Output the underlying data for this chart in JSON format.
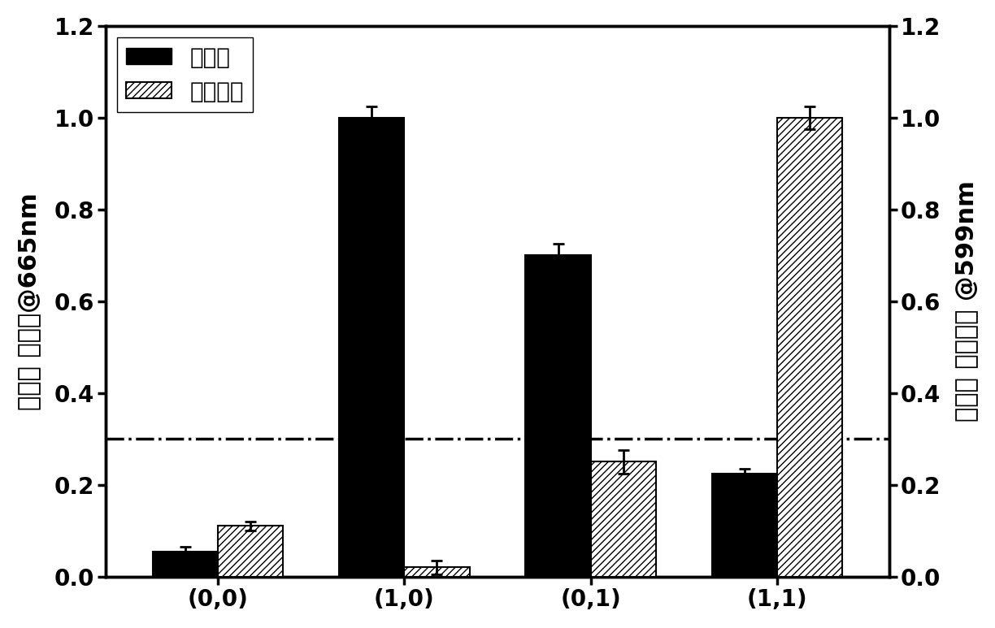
{
  "categories": [
    "(0,0)",
    "(1,0)",
    "(0,1)",
    "(1,1)"
  ],
  "absorbance_values": [
    0.055,
    1.0,
    0.7,
    0.225
  ],
  "absorbance_errors": [
    0.01,
    0.025,
    0.025,
    0.01
  ],
  "fluorescence_values": [
    0.11,
    0.02,
    0.25,
    1.0
  ],
  "fluorescence_errors": [
    0.01,
    0.015,
    0.025,
    0.025
  ],
  "bar_width": 0.35,
  "threshold_line": 0.3,
  "ylim": [
    0.0,
    1.2
  ],
  "yticks": [
    0.0,
    0.2,
    0.4,
    0.6,
    0.8,
    1.0,
    1.2
  ],
  "ylabel_left": "归一化 吸收値@665nm",
  "ylabel_right": "归一化 荧光强度 @599nm",
  "legend_absorbance": "吸光度",
  "legend_fluorescence": "荧光强度",
  "absorbance_color": "#000000",
  "fluorescence_color": "#888888",
  "hatch_pattern": "////",
  "threshold_color": "#000000",
  "background_color": "#ffffff",
  "label_fontsize": 22,
  "tick_fontsize": 20,
  "legend_fontsize": 20,
  "xtick_fontsize": 20
}
